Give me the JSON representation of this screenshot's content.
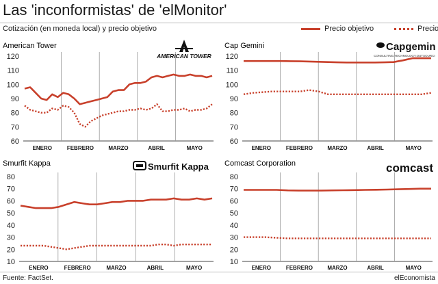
{
  "header": {
    "title": "Las 'inconformistas' de 'elMonitor'",
    "subtitle": "Cotización (en moneda local) y precio objetivo"
  },
  "legend": {
    "target_label": "Precio objetivo",
    "price_label": "Precio"
  },
  "footer": {
    "source": "Fuente: FactSet.",
    "brand": "elEconomista"
  },
  "colors": {
    "accent": "#c8402b"
  },
  "logos": [
    "American Tower",
    "Capgemini",
    "Smurfit Kappa",
    "Comcast"
  ],
  "chart_data": [
    {
      "type": "line",
      "title": "American Tower",
      "logo_text": "AMERICAN TOWER",
      "months": [
        "ENERO",
        "FEBRERO",
        "MARZO",
        "ABRIL",
        "MAYO"
      ],
      "yticks": [
        "120",
        "110",
        "100",
        "90",
        "80",
        "70",
        "60"
      ],
      "ylim": [
        60,
        120
      ],
      "grid": "vertical",
      "series": [
        {
          "name": "Precio objetivo",
          "style": "solid",
          "values": [
            97,
            98,
            94,
            90,
            89,
            93,
            91,
            94,
            93,
            90,
            86,
            87,
            88,
            89,
            90,
            91,
            95,
            96,
            96,
            100,
            101,
            101,
            102,
            105,
            106,
            105,
            106,
            107,
            106,
            106,
            107,
            106,
            106,
            105,
            106
          ]
        },
        {
          "name": "Precio",
          "style": "dotted",
          "values": [
            85,
            82,
            81,
            80,
            80,
            83,
            82,
            85,
            84,
            80,
            72,
            70,
            74,
            76,
            78,
            79,
            80,
            81,
            81,
            82,
            82,
            83,
            82,
            83,
            86,
            81,
            81,
            82,
            82,
            83,
            81,
            82,
            82,
            83,
            86
          ]
        }
      ]
    },
    {
      "type": "line",
      "title": "Cap Gemini",
      "logo_text": "Capgemini",
      "logo_subtext": "CONSULTING.TECHNOLOGY.OUTSOURCING",
      "months": [
        "ENERO",
        "FEBRERO",
        "MARZO",
        "ABRIL",
        "MAYO"
      ],
      "yticks": [
        "120",
        "110",
        "100",
        "90",
        "80",
        "70",
        "60"
      ],
      "ylim": [
        60,
        120
      ],
      "grid": "vertical",
      "series": [
        {
          "name": "Precio objetivo",
          "style": "solid",
          "values": [
            116.5,
            116.5,
            116.5,
            116.5,
            116.5,
            116.4,
            116.3,
            116.2,
            116,
            115.8,
            115.6,
            115.5,
            115.5,
            115.5,
            115.5,
            115.6,
            115.8,
            117,
            118.5,
            118.5,
            118.5
          ]
        },
        {
          "name": "Precio",
          "style": "dotted",
          "values": [
            93,
            94,
            94.5,
            95,
            95,
            95,
            95,
            96,
            95,
            93,
            93,
            93,
            93,
            93,
            93,
            93,
            93,
            93,
            93,
            93,
            94
          ]
        }
      ]
    },
    {
      "type": "line",
      "title": "Smurfit Kappa",
      "logo_text": "Smurfit Kappa",
      "months": [
        "ENERO",
        "FEBRERO",
        "MARZO",
        "ABRIL",
        "MAYO"
      ],
      "yticks": [
        "80",
        "70",
        "60",
        "50",
        "40",
        "30",
        "20",
        "10"
      ],
      "ylim": [
        10,
        80
      ],
      "grid": "vertical",
      "series": [
        {
          "name": "Precio objetivo",
          "style": "solid",
          "values": [
            56,
            55,
            54,
            54,
            54,
            55,
            57,
            59,
            58,
            57,
            57,
            58,
            59,
            59,
            60,
            60,
            60,
            61,
            61,
            61,
            62,
            61,
            61,
            62,
            61,
            62
          ]
        },
        {
          "name": "Precio",
          "style": "dotted",
          "values": [
            23,
            23,
            23,
            23,
            22,
            21,
            20,
            21,
            22,
            23,
            23,
            23,
            23,
            23,
            23,
            23,
            23,
            23,
            24,
            24,
            23,
            24,
            24,
            24,
            24,
            24
          ]
        }
      ]
    },
    {
      "type": "line",
      "title": "Comcast Corporation",
      "logo_text": "Comcast",
      "months": [
        "ENERO",
        "FEBRERO",
        "MARZO",
        "ABRIL",
        "MAYO"
      ],
      "yticks": [
        "80",
        "70",
        "60",
        "50",
        "40",
        "30",
        "20",
        "10"
      ],
      "ylim": [
        10,
        80
      ],
      "grid": "vertical",
      "series": [
        {
          "name": "Precio objetivo",
          "style": "solid",
          "values": [
            69,
            69,
            69,
            69,
            68.6,
            68.5,
            68.5,
            68.5,
            68.6,
            68.7,
            68.8,
            69,
            69.1,
            69.3,
            69.5,
            69.7,
            70,
            70
          ]
        },
        {
          "name": "Precio",
          "style": "dotted",
          "values": [
            30,
            30,
            30,
            29.5,
            29,
            29,
            29,
            29,
            29,
            29,
            29,
            29,
            29,
            29,
            29,
            29,
            29,
            29
          ]
        }
      ]
    }
  ]
}
